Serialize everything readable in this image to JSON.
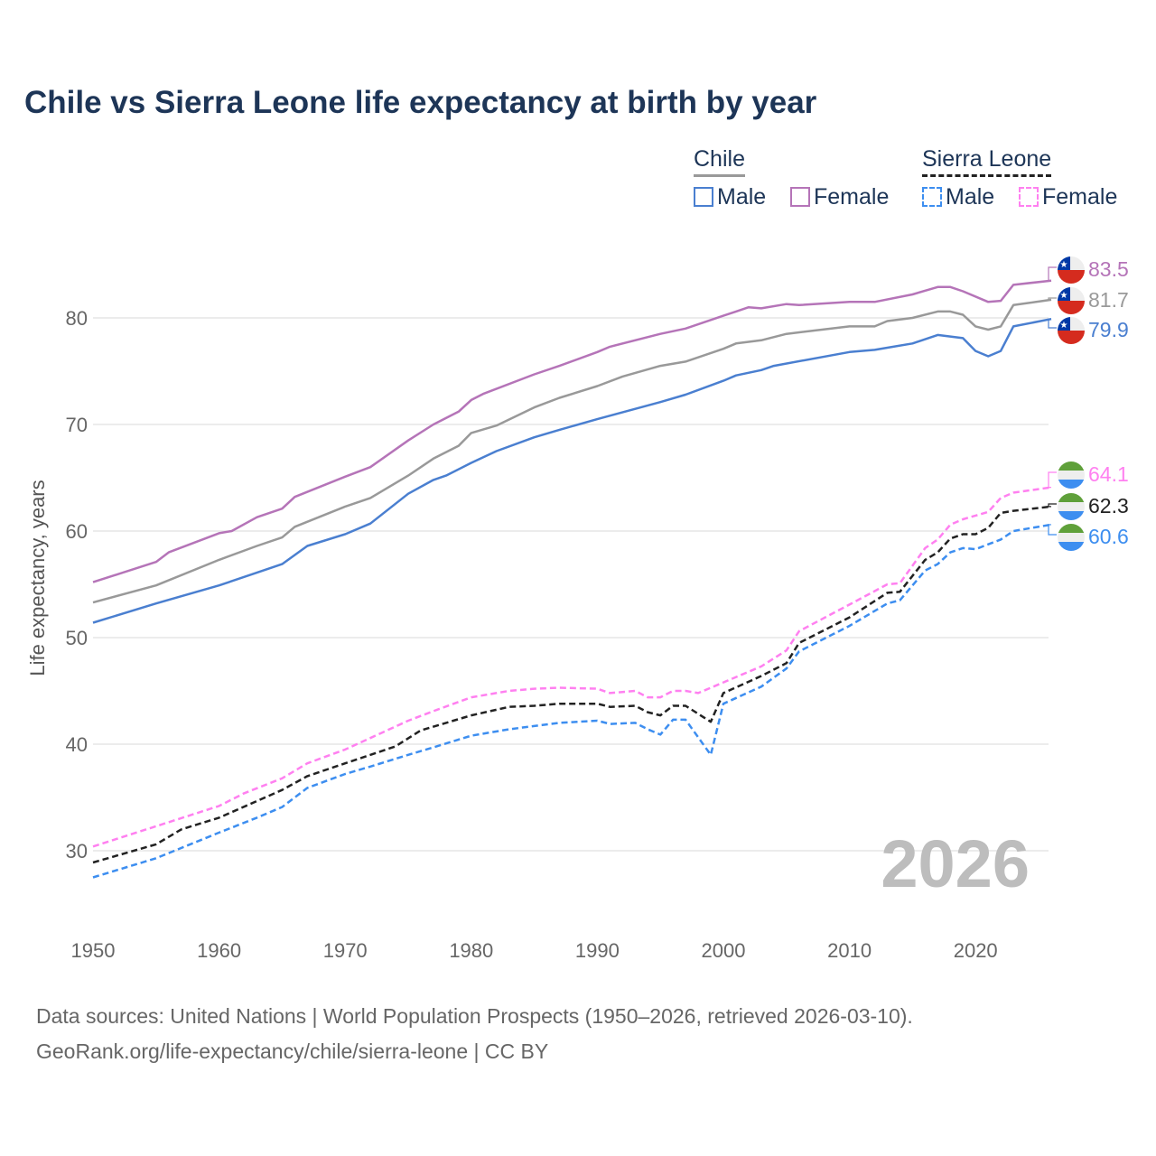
{
  "chart_data": {
    "type": "line",
    "title": "Chile vs Sierra Leone life expectancy at birth by year",
    "ylabel": "Life expectancy, years",
    "xlabel": "",
    "xlim": [
      1950,
      2026
    ],
    "ylim": [
      22,
      88
    ],
    "xticks": [
      "1950",
      "1960",
      "1970",
      "1980",
      "1990",
      "2000",
      "2010",
      "2020"
    ],
    "yticks": [
      "30",
      "40",
      "50",
      "60",
      "70",
      "80"
    ],
    "year_watermark": "2026",
    "legend": {
      "groups": [
        {
          "name": "Chile",
          "items": [
            "Male",
            "Female"
          ]
        },
        {
          "name": "Sierra Leone",
          "items": [
            "Male",
            "Female"
          ]
        }
      ],
      "placement": "top-right"
    },
    "series": [
      {
        "name": "Chile Female",
        "color": "#b574b8",
        "dash": false,
        "end_label": "83.5",
        "flag": "chile",
        "points": [
          [
            1950,
            55.2
          ],
          [
            1955,
            57.1
          ],
          [
            1956,
            58.0
          ],
          [
            1960,
            59.8
          ],
          [
            1961,
            60.0
          ],
          [
            1963,
            61.3
          ],
          [
            1965,
            62.1
          ],
          [
            1966,
            63.2
          ],
          [
            1970,
            65.1
          ],
          [
            1972,
            66.0
          ],
          [
            1975,
            68.5
          ],
          [
            1977,
            70.0
          ],
          [
            1979,
            71.2
          ],
          [
            1980,
            72.3
          ],
          [
            1981,
            72.9
          ],
          [
            1985,
            74.7
          ],
          [
            1987,
            75.5
          ],
          [
            1990,
            76.8
          ],
          [
            1991,
            77.3
          ],
          [
            1995,
            78.5
          ],
          [
            1997,
            79.0
          ],
          [
            2000,
            80.2
          ],
          [
            2001,
            80.6
          ],
          [
            2002,
            81.0
          ],
          [
            2003,
            80.9
          ],
          [
            2005,
            81.3
          ],
          [
            2006,
            81.2
          ],
          [
            2010,
            81.5
          ],
          [
            2012,
            81.5
          ],
          [
            2015,
            82.2
          ],
          [
            2017,
            82.9
          ],
          [
            2018,
            82.9
          ],
          [
            2019,
            82.5
          ],
          [
            2021,
            81.5
          ],
          [
            2022,
            81.6
          ],
          [
            2023,
            83.1
          ],
          [
            2026,
            83.5
          ]
        ]
      },
      {
        "name": "Chile Total",
        "color": "#999999",
        "dash": false,
        "end_label": "81.7",
        "flag": "chile",
        "points": [
          [
            1950,
            53.3
          ],
          [
            1955,
            54.9
          ],
          [
            1960,
            57.3
          ],
          [
            1963,
            58.6
          ],
          [
            1965,
            59.4
          ],
          [
            1966,
            60.4
          ],
          [
            1970,
            62.3
          ],
          [
            1972,
            63.1
          ],
          [
            1975,
            65.2
          ],
          [
            1977,
            66.8
          ],
          [
            1979,
            68.0
          ],
          [
            1980,
            69.2
          ],
          [
            1982,
            69.9
          ],
          [
            1985,
            71.6
          ],
          [
            1987,
            72.5
          ],
          [
            1990,
            73.6
          ],
          [
            1992,
            74.5
          ],
          [
            1995,
            75.5
          ],
          [
            1997,
            75.9
          ],
          [
            2000,
            77.1
          ],
          [
            2001,
            77.6
          ],
          [
            2003,
            77.9
          ],
          [
            2005,
            78.5
          ],
          [
            2010,
            79.2
          ],
          [
            2012,
            79.2
          ],
          [
            2013,
            79.7
          ],
          [
            2015,
            80.0
          ],
          [
            2017,
            80.6
          ],
          [
            2018,
            80.6
          ],
          [
            2019,
            80.3
          ],
          [
            2020,
            79.2
          ],
          [
            2021,
            78.9
          ],
          [
            2022,
            79.2
          ],
          [
            2023,
            81.2
          ],
          [
            2026,
            81.7
          ]
        ]
      },
      {
        "name": "Chile Male",
        "color": "#4a7fd0",
        "dash": false,
        "end_label": "79.9",
        "flag": "chile",
        "points": [
          [
            1950,
            51.4
          ],
          [
            1955,
            53.2
          ],
          [
            1960,
            54.9
          ],
          [
            1965,
            56.9
          ],
          [
            1967,
            58.6
          ],
          [
            1970,
            59.7
          ],
          [
            1972,
            60.7
          ],
          [
            1975,
            63.5
          ],
          [
            1977,
            64.8
          ],
          [
            1978,
            65.2
          ],
          [
            1980,
            66.4
          ],
          [
            1982,
            67.5
          ],
          [
            1985,
            68.8
          ],
          [
            1987,
            69.5
          ],
          [
            1990,
            70.5
          ],
          [
            1995,
            72.1
          ],
          [
            1997,
            72.8
          ],
          [
            2000,
            74.1
          ],
          [
            2001,
            74.6
          ],
          [
            2003,
            75.1
          ],
          [
            2004,
            75.5
          ],
          [
            2010,
            76.8
          ],
          [
            2012,
            77.0
          ],
          [
            2015,
            77.6
          ],
          [
            2017,
            78.4
          ],
          [
            2019,
            78.1
          ],
          [
            2020,
            76.9
          ],
          [
            2021,
            76.4
          ],
          [
            2022,
            76.9
          ],
          [
            2023,
            79.2
          ],
          [
            2026,
            79.9
          ]
        ]
      },
      {
        "name": "Sierra Leone Female",
        "color": "#ff80f0",
        "dash": true,
        "end_label": "64.1",
        "flag": "sierra-leone",
        "points": [
          [
            1950,
            30.4
          ],
          [
            1955,
            32.3
          ],
          [
            1960,
            34.2
          ],
          [
            1962,
            35.4
          ],
          [
            1965,
            36.8
          ],
          [
            1967,
            38.2
          ],
          [
            1970,
            39.5
          ],
          [
            1975,
            42.2
          ],
          [
            1977,
            43.1
          ],
          [
            1980,
            44.4
          ],
          [
            1983,
            45.0
          ],
          [
            1985,
            45.2
          ],
          [
            1987,
            45.3
          ],
          [
            1990,
            45.2
          ],
          [
            1991,
            44.8
          ],
          [
            1993,
            45.0
          ],
          [
            1994,
            44.4
          ],
          [
            1995,
            44.4
          ],
          [
            1996,
            45.0
          ],
          [
            1997,
            45.0
          ],
          [
            1998,
            44.8
          ],
          [
            2000,
            45.8
          ],
          [
            2003,
            47.3
          ],
          [
            2005,
            48.8
          ],
          [
            2006,
            50.6
          ],
          [
            2010,
            53.1
          ],
          [
            2013,
            55.0
          ],
          [
            2014,
            55.1
          ],
          [
            2016,
            58.4
          ],
          [
            2017,
            59.2
          ],
          [
            2018,
            60.6
          ],
          [
            2019,
            61.1
          ],
          [
            2021,
            61.8
          ],
          [
            2022,
            63.1
          ],
          [
            2023,
            63.6
          ],
          [
            2026,
            64.1
          ]
        ]
      },
      {
        "name": "Sierra Leone Total",
        "color": "#222222",
        "dash": true,
        "end_label": "62.3",
        "flag": "sierra-leone",
        "points": [
          [
            1950,
            28.9
          ],
          [
            1955,
            30.6
          ],
          [
            1957,
            32.0
          ],
          [
            1960,
            33.1
          ],
          [
            1965,
            35.7
          ],
          [
            1967,
            37.0
          ],
          [
            1970,
            38.2
          ],
          [
            1974,
            39.8
          ],
          [
            1976,
            41.3
          ],
          [
            1980,
            42.7
          ],
          [
            1983,
            43.5
          ],
          [
            1985,
            43.6
          ],
          [
            1987,
            43.8
          ],
          [
            1990,
            43.8
          ],
          [
            1991,
            43.5
          ],
          [
            1993,
            43.6
          ],
          [
            1994,
            43.0
          ],
          [
            1995,
            42.7
          ],
          [
            1996,
            43.6
          ],
          [
            1997,
            43.6
          ],
          [
            1999,
            42.1
          ],
          [
            2000,
            44.8
          ],
          [
            2003,
            46.4
          ],
          [
            2005,
            47.6
          ],
          [
            2006,
            49.5
          ],
          [
            2010,
            51.9
          ],
          [
            2013,
            54.2
          ],
          [
            2014,
            54.3
          ],
          [
            2016,
            57.3
          ],
          [
            2017,
            58.0
          ],
          [
            2018,
            59.3
          ],
          [
            2019,
            59.7
          ],
          [
            2020,
            59.7
          ],
          [
            2021,
            60.3
          ],
          [
            2022,
            61.7
          ],
          [
            2023,
            61.9
          ],
          [
            2026,
            62.3
          ]
        ]
      },
      {
        "name": "Sierra Leone Male",
        "color": "#3d8ef0",
        "dash": true,
        "end_label": "60.6",
        "flag": "sierra-leone",
        "points": [
          [
            1950,
            27.5
          ],
          [
            1955,
            29.3
          ],
          [
            1960,
            31.7
          ],
          [
            1963,
            33.1
          ],
          [
            1965,
            34.1
          ],
          [
            1967,
            35.9
          ],
          [
            1970,
            37.2
          ],
          [
            1972,
            37.9
          ],
          [
            1975,
            39.0
          ],
          [
            1977,
            39.7
          ],
          [
            1980,
            40.8
          ],
          [
            1983,
            41.4
          ],
          [
            1985,
            41.7
          ],
          [
            1987,
            42.0
          ],
          [
            1990,
            42.2
          ],
          [
            1991,
            41.9
          ],
          [
            1993,
            42.0
          ],
          [
            1994,
            41.4
          ],
          [
            1995,
            40.9
          ],
          [
            1996,
            42.3
          ],
          [
            1997,
            42.3
          ],
          [
            1999,
            39.0
          ],
          [
            2000,
            43.8
          ],
          [
            2003,
            45.4
          ],
          [
            2005,
            47.1
          ],
          [
            2006,
            48.7
          ],
          [
            2010,
            51.1
          ],
          [
            2013,
            53.2
          ],
          [
            2014,
            53.5
          ],
          [
            2016,
            56.3
          ],
          [
            2017,
            56.9
          ],
          [
            2018,
            58.0
          ],
          [
            2019,
            58.4
          ],
          [
            2020,
            58.3
          ],
          [
            2022,
            59.2
          ],
          [
            2023,
            60.0
          ],
          [
            2026,
            60.6
          ]
        ]
      }
    ]
  },
  "legend": {
    "chile": "Chile",
    "sierra_leone": "Sierra Leone",
    "male": "Male",
    "female": "Female"
  },
  "source": {
    "line1": "Data sources: United Nations | World Population Prospects (1950–2026, retrieved 2026-03-10).",
    "line2": "GeoRank.org/life-expectancy/chile/sierra-leone | CC BY"
  }
}
